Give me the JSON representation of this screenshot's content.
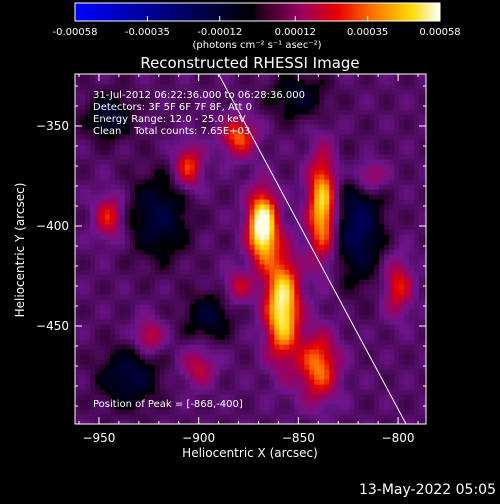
{
  "colorbar": {
    "tick_labels": [
      "-0.00058",
      "-0.00035",
      "-0.00012",
      "0.00012",
      "0.00035",
      "0.00058"
    ],
    "tick_values": [
      -0.00058,
      -0.00035,
      -0.00012,
      0.00012,
      0.00035,
      0.00058
    ],
    "range": [
      -0.00058,
      0.00058
    ],
    "unit_label": "(photons cm⁻² s⁻¹ asec⁻²)"
  },
  "chart_data": {
    "type": "heatmap",
    "title": "Reconstructed RHESSI Image",
    "xlabel": "Heliocentric X (arcsec)",
    "ylabel": "Heliocentric Y (arcsec)",
    "xlim": [
      -962,
      -786
    ],
    "ylim": [
      -499,
      -324
    ],
    "x_ticks": [
      -950,
      -900,
      -850,
      -800
    ],
    "x_tick_labels": [
      "−950",
      "−900",
      "−850",
      "−800"
    ],
    "y_ticks": [
      -350,
      -400,
      -450
    ],
    "y_tick_labels": [
      "−350",
      "−400",
      "−450"
    ],
    "info_lines": [
      "31-Jul-2012 06:22:36.000 to 06:28:36.000",
      "Detectors: 3F 5F 6F 7F 8F, Att 0",
      "Energy Range: 12.0 - 25.0 keV",
      "Clean    Total counts: 7.65E+03"
    ],
    "peak_label": "Position of Peak = [-868,-400]",
    "peak": [
      -868,
      -400
    ],
    "limb_line": [
      [
        -890,
        -324
      ],
      [
        -796,
        -499
      ]
    ],
    "sources": [
      {
        "x": -868,
        "y": -400,
        "sx": 5,
        "sy": 12,
        "amp": 1.0
      },
      {
        "x": -858,
        "y": -440,
        "sx": 6,
        "sy": 18,
        "amp": 0.85
      },
      {
        "x": -838,
        "y": -390,
        "sx": 5,
        "sy": 18,
        "amp": 0.75
      },
      {
        "x": -840,
        "y": -470,
        "sx": 7,
        "sy": 12,
        "amp": 0.55
      },
      {
        "x": -905,
        "y": -370,
        "sx": 5,
        "sy": 8,
        "amp": 0.45
      },
      {
        "x": -880,
        "y": -355,
        "sx": 6,
        "sy": 7,
        "amp": 0.5
      },
      {
        "x": -945,
        "y": -395,
        "sx": 5,
        "sy": 8,
        "amp": 0.4
      },
      {
        "x": -800,
        "y": -430,
        "sx": 5,
        "sy": 10,
        "amp": 0.4
      },
      {
        "x": -815,
        "y": -375,
        "sx": 6,
        "sy": 6,
        "amp": 0.35
      },
      {
        "x": -925,
        "y": -455,
        "sx": 5,
        "sy": 6,
        "amp": 0.35
      },
      {
        "x": -900,
        "y": -470,
        "sx": 6,
        "sy": 7,
        "amp": 0.3
      },
      {
        "x": -880,
        "y": -430,
        "sx": 5,
        "sy": 6,
        "amp": 0.3
      }
    ],
    "negative_sources": [
      {
        "x": -920,
        "y": -395,
        "sx": 10,
        "sy": 14,
        "amp": 0.35
      },
      {
        "x": -935,
        "y": -475,
        "sx": 10,
        "sy": 10,
        "amp": 0.35
      },
      {
        "x": -820,
        "y": -400,
        "sx": 8,
        "sy": 18,
        "amp": 0.45
      },
      {
        "x": -895,
        "y": -445,
        "sx": 8,
        "sy": 8,
        "amp": 0.3
      },
      {
        "x": -945,
        "y": -345,
        "sx": 8,
        "sy": 8,
        "amp": 0.3
      },
      {
        "x": -850,
        "y": -335,
        "sx": 10,
        "sy": 8,
        "amp": 0.25
      }
    ]
  },
  "footer": {
    "timestamp": "13-May-2022 05:05"
  }
}
